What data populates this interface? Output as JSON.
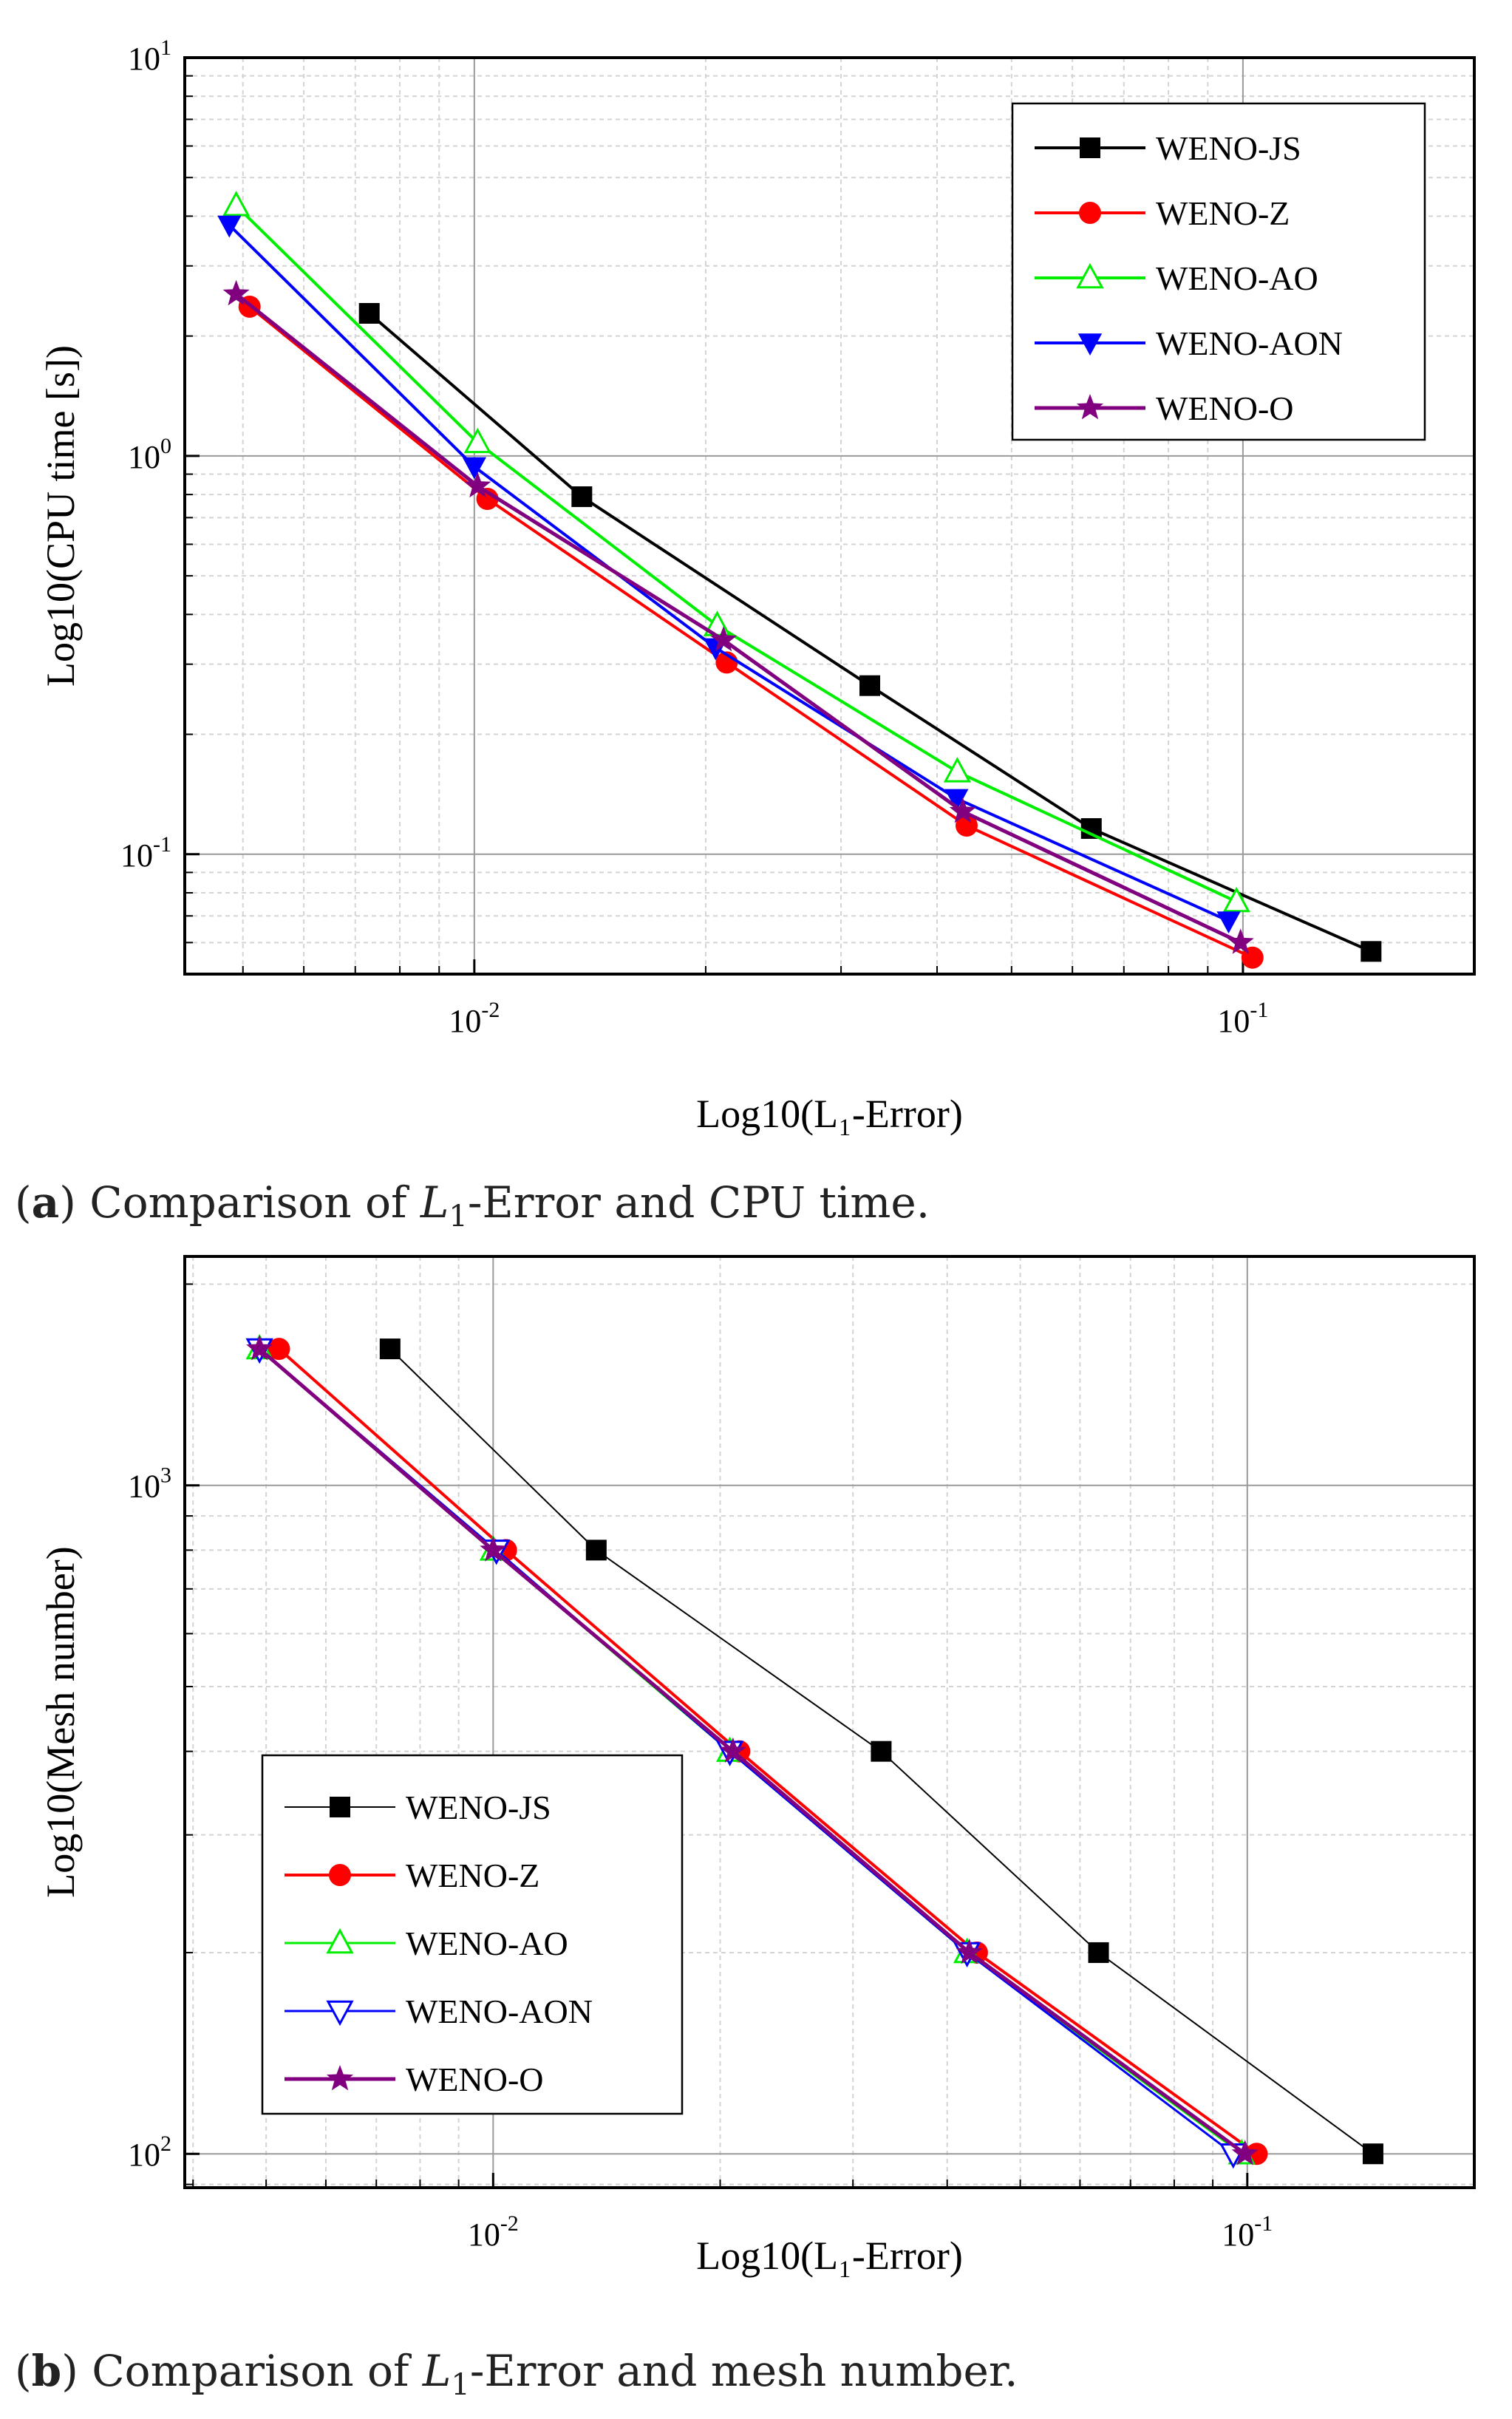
{
  "colors": {
    "WENO-JS": "#000000",
    "WENO-Z": "#ff0000",
    "WENO-AO": "#00ee00",
    "WENO-AON": "#0000ff",
    "WENO-O": "#800080",
    "grid": "#9a9a9a",
    "minor_grid": "#d4d4d4"
  },
  "chart_data": [
    {
      "type": "line",
      "panel": "a",
      "xscale": "log",
      "yscale": "log",
      "xlabel": "Log10(L₁-Error)",
      "ylabel": "Log10(CPU time [s])",
      "xlim": [
        0.0042,
        0.2
      ],
      "ylim": [
        0.05,
        10
      ],
      "xticks": [
        0.01,
        0.1
      ],
      "xtick_labels": [
        {
          "base": "10",
          "exp": "-2"
        },
        {
          "base": "10",
          "exp": "-1"
        }
      ],
      "yticks": [
        0.1,
        1,
        10
      ],
      "ytick_labels": [
        {
          "base": "10",
          "exp": "-1"
        },
        {
          "base": "10",
          "exp": "0"
        },
        {
          "base": "10",
          "exp": "1"
        }
      ],
      "legend_position": "top-right",
      "caption": {
        "label": "a",
        "text_before": " Comparison of ",
        "var": "L",
        "sub": "1",
        "text_after": "-Error and CPU time."
      },
      "series": [
        {
          "name": "WENO-JS",
          "marker": "square-filled",
          "line_width": 4,
          "x": [
            0.0073,
            0.0138,
            0.0327,
            0.0635,
            0.1468
          ],
          "y": [
            2.28,
            0.79,
            0.265,
            0.116,
            0.057
          ]
        },
        {
          "name": "WENO-Z",
          "marker": "circle-filled",
          "line_width": 4,
          "x": [
            0.0051,
            0.0104,
            0.0213,
            0.0437,
            0.1029
          ],
          "y": [
            2.37,
            0.78,
            0.303,
            0.118,
            0.055
          ]
        },
        {
          "name": "WENO-AO",
          "marker": "triangle-up-open",
          "line_width": 4,
          "x": [
            0.0049,
            0.0101,
            0.0207,
            0.0425,
            0.0981
          ],
          "y": [
            4.25,
            1.08,
            0.375,
            0.161,
            0.076
          ]
        },
        {
          "name": "WENO-AON",
          "marker": "triangle-down-filled",
          "line_width": 4,
          "x": [
            0.0048,
            0.01,
            0.0206,
            0.0424,
            0.0958
          ],
          "y": [
            3.8,
            0.94,
            0.33,
            0.138,
            0.068
          ]
        },
        {
          "name": "WENO-O",
          "marker": "star-filled",
          "line_width": 5,
          "x": [
            0.0049,
            0.0101,
            0.0211,
            0.0432,
            0.0993
          ],
          "y": [
            2.55,
            0.84,
            0.345,
            0.128,
            0.06
          ]
        }
      ]
    },
    {
      "type": "line",
      "panel": "b",
      "xscale": "log",
      "yscale": "log",
      "xlabel": "Log10(L₁-Error)",
      "ylabel": "Log10(Mesh number)",
      "xlim": [
        0.0039,
        0.2
      ],
      "ylim": [
        89,
        2200
      ],
      "xticks": [
        0.01,
        0.1
      ],
      "xtick_labels": [
        {
          "base": "10",
          "exp": "-2"
        },
        {
          "base": "10",
          "exp": "-1"
        }
      ],
      "yticks": [
        100,
        1000
      ],
      "ytick_labels": [
        {
          "base": "10",
          "exp": "2"
        },
        {
          "base": "10",
          "exp": "3"
        }
      ],
      "legend_position": "bottom-left",
      "caption": {
        "label": "b",
        "text_before": " Comparison of ",
        "var": "L",
        "sub": "1",
        "text_after": "-Error and mesh number."
      },
      "series": [
        {
          "name": "WENO-JS",
          "marker": "square-filled",
          "line_width": 2,
          "x": [
            0.0073,
            0.0137,
            0.0327,
            0.0635,
            0.1468
          ],
          "y": [
            1600,
            800,
            400,
            200,
            100
          ]
        },
        {
          "name": "WENO-Z",
          "marker": "circle-filled",
          "line_width": 4,
          "x": [
            0.0052,
            0.0104,
            0.0212,
            0.0438,
            0.1029
          ],
          "y": [
            1600,
            800,
            400,
            200,
            100
          ]
        },
        {
          "name": "WENO-AO",
          "marker": "triangle-up-open",
          "line_width": 3,
          "x": [
            0.0049,
            0.01,
            0.0206,
            0.0425,
            0.0983
          ],
          "y": [
            1600,
            800,
            400,
            200,
            100
          ]
        },
        {
          "name": "WENO-AON",
          "marker": "triangle-down-open",
          "line_width": 3,
          "x": [
            0.0049,
            0.0101,
            0.0206,
            0.0425,
            0.0958
          ],
          "y": [
            1600,
            800,
            400,
            200,
            100
          ]
        },
        {
          "name": "WENO-O",
          "marker": "star-filled",
          "line_width": 5,
          "x": [
            0.0049,
            0.01,
            0.0208,
            0.0428,
            0.0993
          ],
          "y": [
            1600,
            800,
            400,
            200,
            100
          ]
        }
      ]
    }
  ]
}
